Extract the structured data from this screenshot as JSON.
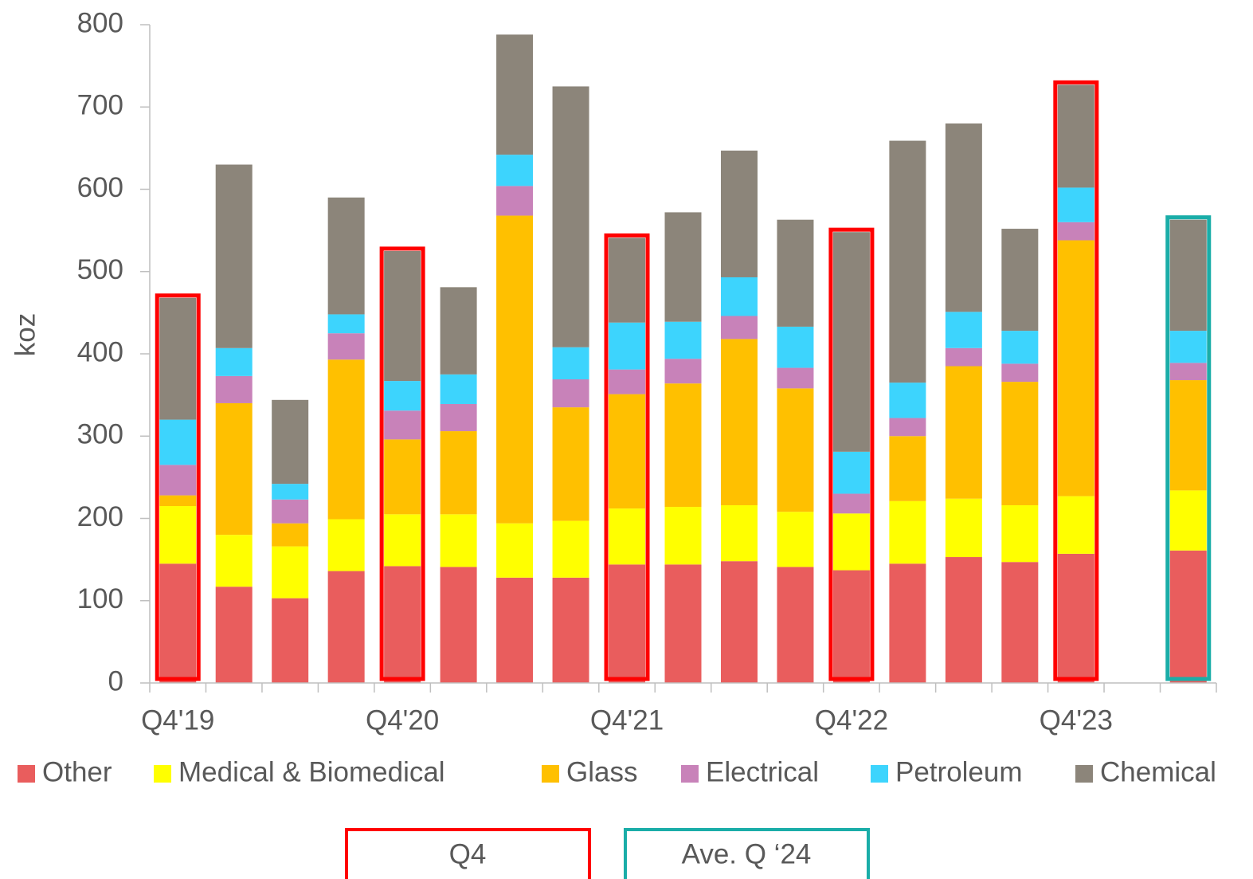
{
  "chart_data": {
    "type": "stacked_bar",
    "y_label": "koz",
    "categories": [
      "Q4'19",
      null,
      null,
      null,
      "Q4'20",
      null,
      null,
      null,
      "Q4'21",
      null,
      null,
      null,
      "Q4'22",
      null,
      null,
      null,
      "Q4'23",
      null,
      null
    ],
    "series": [
      {
        "name": "Other",
        "color": "#e95d5d",
        "values": [
          145,
          117,
          103,
          136,
          142,
          141,
          128,
          128,
          144,
          144,
          148,
          141,
          137,
          145,
          153,
          147,
          157,
          null,
          161
        ]
      },
      {
        "name": "Medical & Biomedical",
        "color": "#ffff00",
        "values": [
          70,
          63,
          63,
          63,
          63,
          64,
          66,
          69,
          68,
          70,
          68,
          67,
          69,
          76,
          71,
          69,
          70,
          null,
          73
        ]
      },
      {
        "name": "Glass",
        "color": "#ffc000",
        "values": [
          13,
          160,
          28,
          194,
          91,
          101,
          374,
          138,
          139,
          150,
          202,
          150,
          0,
          79,
          161,
          150,
          311,
          null,
          134
        ]
      },
      {
        "name": "Electrical",
        "color": "#c882b9",
        "values": [
          37,
          33,
          29,
          32,
          35,
          33,
          36,
          34,
          30,
          30,
          28,
          25,
          24,
          22,
          22,
          22,
          22,
          null,
          21
        ]
      },
      {
        "name": "Petroleum",
        "color": "#3dd4fd",
        "values": [
          55,
          34,
          19,
          23,
          36,
          36,
          38,
          39,
          57,
          45,
          47,
          50,
          51,
          43,
          44,
          40,
          42,
          null,
          39
        ]
      },
      {
        "name": "Chemical",
        "color": "#8c857a",
        "values": [
          148,
          223,
          102,
          142,
          158,
          106,
          146,
          317,
          103,
          133,
          154,
          130,
          267,
          294,
          229,
          124,
          125,
          null,
          135
        ]
      }
    ],
    "ylim": [
      0,
      800
    ],
    "yticks": [
      0,
      100,
      200,
      300,
      400,
      500,
      600,
      700,
      800
    ],
    "highlights": [
      {
        "label": "Q4",
        "color": "#ff0000",
        "indices": [
          0,
          4,
          8,
          12,
          16
        ]
      },
      {
        "label": "Ave. Q ‘24",
        "color": "#1aada8",
        "indices": [
          18
        ]
      }
    ]
  }
}
